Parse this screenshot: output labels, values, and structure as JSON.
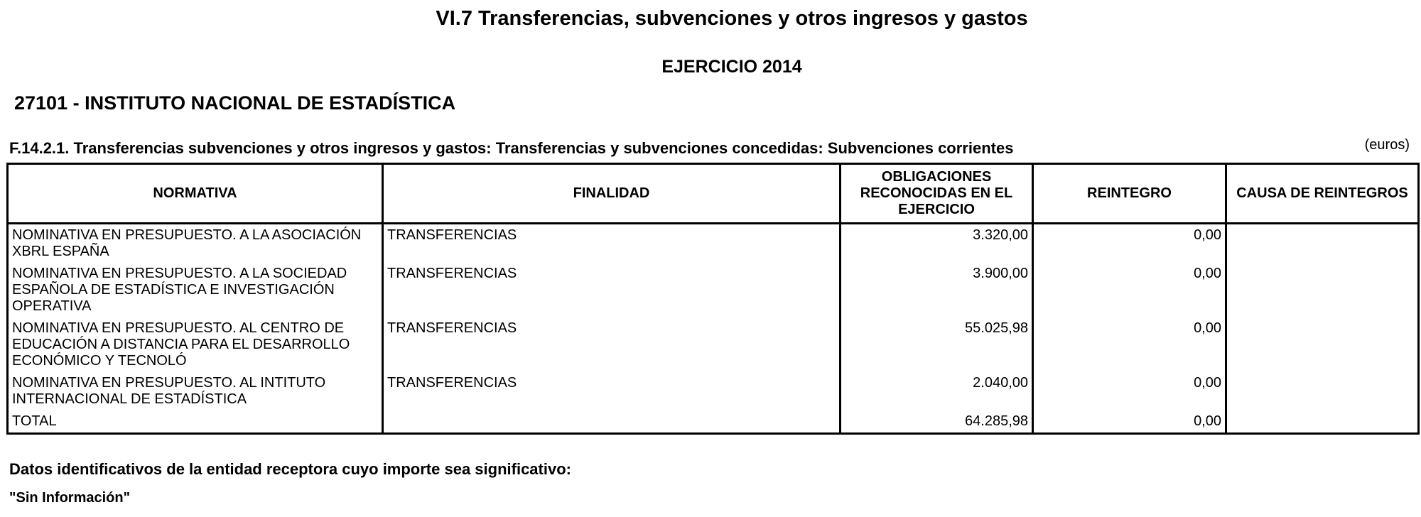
{
  "header": {
    "title": "VI.7 Transferencias, subvenciones y otros ingresos y gastos",
    "subtitle": "EJERCICIO 2014",
    "entity": "27101 - INSTITUTO NACIONAL DE ESTADÍSTICA"
  },
  "section": {
    "title": "F.14.2.1. Transferencias subvenciones y otros ingresos y gastos: Transferencias y subvenciones concedidas: Subvenciones corrientes",
    "unit": "(euros)"
  },
  "table": {
    "columns": [
      "NORMATIVA",
      "FINALIDAD",
      "OBLIGACIONES RECONOCIDAS EN EL EJERCICIO",
      "REINTEGRO",
      "CAUSA DE REINTEGROS"
    ],
    "rows": [
      {
        "normativa": "NOMINATIVA EN PRESUPUESTO. A LA ASOCIACIÓN XBRL ESPAÑA",
        "finalidad": "TRANSFERENCIAS",
        "obligaciones": "3.320,00",
        "reintegro": "0,00"
      },
      {
        "normativa": "NOMINATIVA EN PRESUPUESTO. A LA SOCIEDAD ESPAÑOLA DE ESTADÍSTICA E INVESTIGACIÓN OPERATIVA",
        "finalidad": "TRANSFERENCIAS",
        "obligaciones": "3.900,00",
        "reintegro": "0,00"
      },
      {
        "normativa": "NOMINATIVA EN PRESUPUESTO. AL CENTRO DE EDUCACIÓN A DISTANCIA PARA EL DESARROLLO ECONÓMICO Y TECNOLÓ",
        "finalidad": "TRANSFERENCIAS",
        "obligaciones": "55.025,98",
        "reintegro": "0,00"
      },
      {
        "normativa": "NOMINATIVA EN PRESUPUESTO. AL INTITUTO INTERNACIONAL DE ESTADÍSTICA",
        "finalidad": "TRANSFERENCIAS",
        "obligaciones": "2.040,00",
        "reintegro": "0,00"
      }
    ],
    "total": {
      "label": "TOTAL",
      "obligaciones": "64.285,98",
      "reintegro": "0,00"
    }
  },
  "footer": {
    "label": "Datos identificativos de la entidad receptora cuyo importe sea significativo:",
    "note": "\"Sin Información\""
  }
}
